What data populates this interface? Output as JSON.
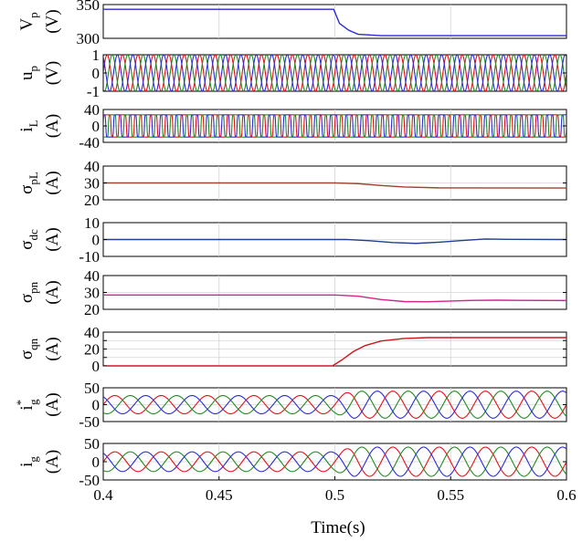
{
  "chart_data": {
    "type": "line",
    "xlabel": "Time(s)",
    "xlim": [
      0.4,
      0.6
    ],
    "xticks": [
      0.4,
      0.45,
      0.5,
      0.55,
      0.6
    ],
    "x_tick_labels": [
      "0.4",
      "0.45",
      "0.5",
      "0.55",
      "0.6"
    ],
    "grid": true,
    "colors": {
      "blue": "#2b2bd9",
      "green": "#228b22",
      "red": "#e8101a",
      "brown": "#a0422d",
      "navy": "#1f3f8f",
      "magenta": "#d6228a",
      "darkred": "#d1151b"
    },
    "panels": [
      {
        "id": "vp",
        "ylabel": "V",
        "ylabel_sub": "p",
        "yunit": "(V)",
        "ylim": [
          300,
          350
        ],
        "yticks": [
          300,
          350
        ],
        "series": [
          {
            "color": "#2b2bd9",
            "points": [
              [
                0.4,
                343
              ],
              [
                0.4995,
                343
              ],
              [
                0.502,
                322
              ],
              [
                0.506,
                312
              ],
              [
                0.51,
                306
              ],
              [
                0.52,
                304
              ],
              [
                0.6,
                304
              ]
            ]
          }
        ]
      },
      {
        "id": "up",
        "ylabel": "u",
        "ylabel_sub": "p",
        "yunit": "(V)",
        "ylim": [
          -1,
          1
        ],
        "yticks": [
          -1,
          0,
          1
        ],
        "sinusoids": {
          "freq_hz": 150,
          "phases_deg": [
            0,
            -120,
            120
          ],
          "colors": [
            "#e8101a",
            "#228b22",
            "#2b2bd9"
          ],
          "amplitude_before": 1,
          "amplitude_after": 1,
          "change_time": 0.5
        }
      },
      {
        "id": "il",
        "ylabel": "i",
        "ylabel_sub": "L",
        "yunit": "(A)",
        "ylim": [
          -40,
          40
        ],
        "yticks": [
          -40,
          0,
          40
        ],
        "y_tick_labels": [
          "-40",
          "0",
          "40"
        ],
        "squarewaves": {
          "freq_hz": 150,
          "phases_deg": [
            0,
            -120,
            120
          ],
          "colors": [
            "#e8101a",
            "#228b22",
            "#2b2bd9"
          ],
          "amplitude": 27
        }
      },
      {
        "id": "spl",
        "ylabel": "σ",
        "ylabel_sub": "pL",
        "yunit": "(A)",
        "ylim": [
          20,
          40
        ],
        "yticks": [
          20,
          30,
          40
        ],
        "series": [
          {
            "color": "#a0422d",
            "points": [
              [
                0.4,
                30
              ],
              [
                0.5,
                30
              ],
              [
                0.51,
                29.6
              ],
              [
                0.52,
                28.5
              ],
              [
                0.53,
                27.6
              ],
              [
                0.545,
                27.1
              ],
              [
                0.6,
                27
              ]
            ]
          }
        ]
      },
      {
        "id": "sdc",
        "ylabel": "σ",
        "ylabel_sub": "dc",
        "yunit": "(A)",
        "ylim": [
          -10,
          10
        ],
        "yticks": [
          -10,
          0,
          10
        ],
        "series": [
          {
            "color": "#1f3f8f",
            "points": [
              [
                0.4,
                0
              ],
              [
                0.505,
                0
              ],
              [
                0.515,
                -0.7
              ],
              [
                0.525,
                -1.8
              ],
              [
                0.535,
                -2.3
              ],
              [
                0.545,
                -1.6
              ],
              [
                0.555,
                -0.6
              ],
              [
                0.565,
                0.3
              ],
              [
                0.575,
                0.1
              ],
              [
                0.6,
                0
              ]
            ]
          }
        ]
      },
      {
        "id": "spn",
        "ylabel": "σ",
        "ylabel_sub": "pn",
        "yunit": "(A)",
        "ylim": [
          20,
          40
        ],
        "yticks": [
          20,
          30,
          40
        ],
        "series": [
          {
            "color": "#d6228a",
            "points": [
              [
                0.4,
                28.5
              ],
              [
                0.5,
                28.5
              ],
              [
                0.51,
                27.8
              ],
              [
                0.52,
                25.8
              ],
              [
                0.53,
                24.6
              ],
              [
                0.54,
                24.5
              ],
              [
                0.55,
                24.9
              ],
              [
                0.56,
                25.3
              ],
              [
                0.57,
                25.4
              ],
              [
                0.58,
                25.3
              ],
              [
                0.6,
                25.2
              ]
            ]
          }
        ]
      },
      {
        "id": "sqn",
        "ylabel": "σ",
        "ylabel_sub": "qn",
        "yunit": "(A)",
        "ylim": [
          0,
          40
        ],
        "yticks": [
          0,
          10,
          20,
          30,
          40
        ],
        "y_tick_labels": [
          "0",
          "",
          "20",
          "",
          "40"
        ],
        "series": [
          {
            "color": "#d1151b",
            "points": [
              [
                0.4,
                0
              ],
              [
                0.499,
                0
              ],
              [
                0.503,
                7
              ],
              [
                0.508,
                17
              ],
              [
                0.513,
                24
              ],
              [
                0.52,
                29.5
              ],
              [
                0.53,
                32.5
              ],
              [
                0.54,
                33.5
              ],
              [
                0.6,
                33.5
              ]
            ]
          }
        ]
      },
      {
        "id": "igref",
        "ylabel": "i",
        "ylabel_sub": "g",
        "ylabel_sup": "*",
        "yunit": "(A)",
        "ylim": [
          -50,
          50
        ],
        "yticks": [
          -50,
          0,
          50
        ],
        "sinusoids": {
          "freq_hz": 50,
          "phases_deg": [
            0,
            -120,
            120
          ],
          "colors": [
            "#e8101a",
            "#228b22",
            "#2b2bd9"
          ],
          "amplitude_before": 27,
          "amplitude_after": 40,
          "change_time": 0.5
        }
      },
      {
        "id": "ig",
        "ylabel": "i",
        "ylabel_sub": "g",
        "yunit": "(A)",
        "ylim": [
          -50,
          50
        ],
        "yticks": [
          -50,
          0,
          50
        ],
        "sinusoids": {
          "freq_hz": 50,
          "phases_deg": [
            0,
            -120,
            120
          ],
          "colors": [
            "#e8101a",
            "#228b22",
            "#2b2bd9"
          ],
          "amplitude_before": 27,
          "amplitude_after": 40,
          "change_time": 0.5
        }
      }
    ]
  }
}
